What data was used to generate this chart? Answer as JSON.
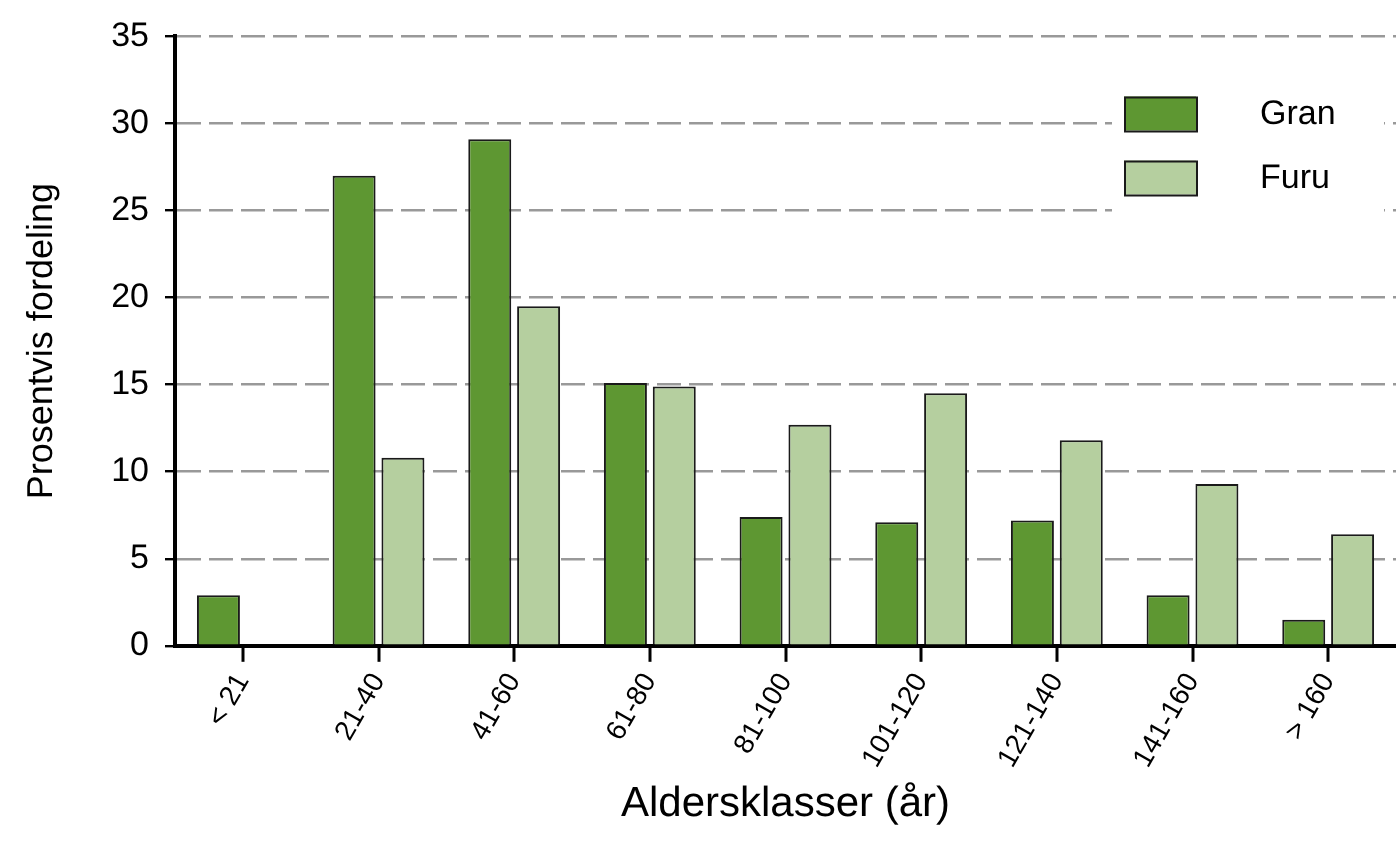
{
  "chart_data": {
    "type": "bar",
    "xlabel": "Aldersklasser (år)",
    "ylabel": "Prosentvis fordeling",
    "categories": [
      "< 21",
      "21-40",
      "41-60",
      "61-80",
      "81-100",
      "101-120",
      "121-140",
      "141-160",
      "> 160"
    ],
    "series": [
      {
        "name": "Gran",
        "color": "#5e9732",
        "values": [
          2.9,
          27,
          29.1,
          15.1,
          7.4,
          7.1,
          7.2,
          2.9,
          1.5
        ]
      },
      {
        "name": "Furu",
        "color": "#b5cf9f",
        "values": [
          null,
          10.8,
          19.5,
          14.9,
          12.7,
          14.5,
          11.8,
          9.3,
          6.4
        ]
      }
    ],
    "ylim": [
      0,
      35
    ],
    "yticks": [
      0,
      5,
      10,
      15,
      20,
      25,
      30,
      35
    ],
    "grid": "y",
    "legend": "top right"
  }
}
